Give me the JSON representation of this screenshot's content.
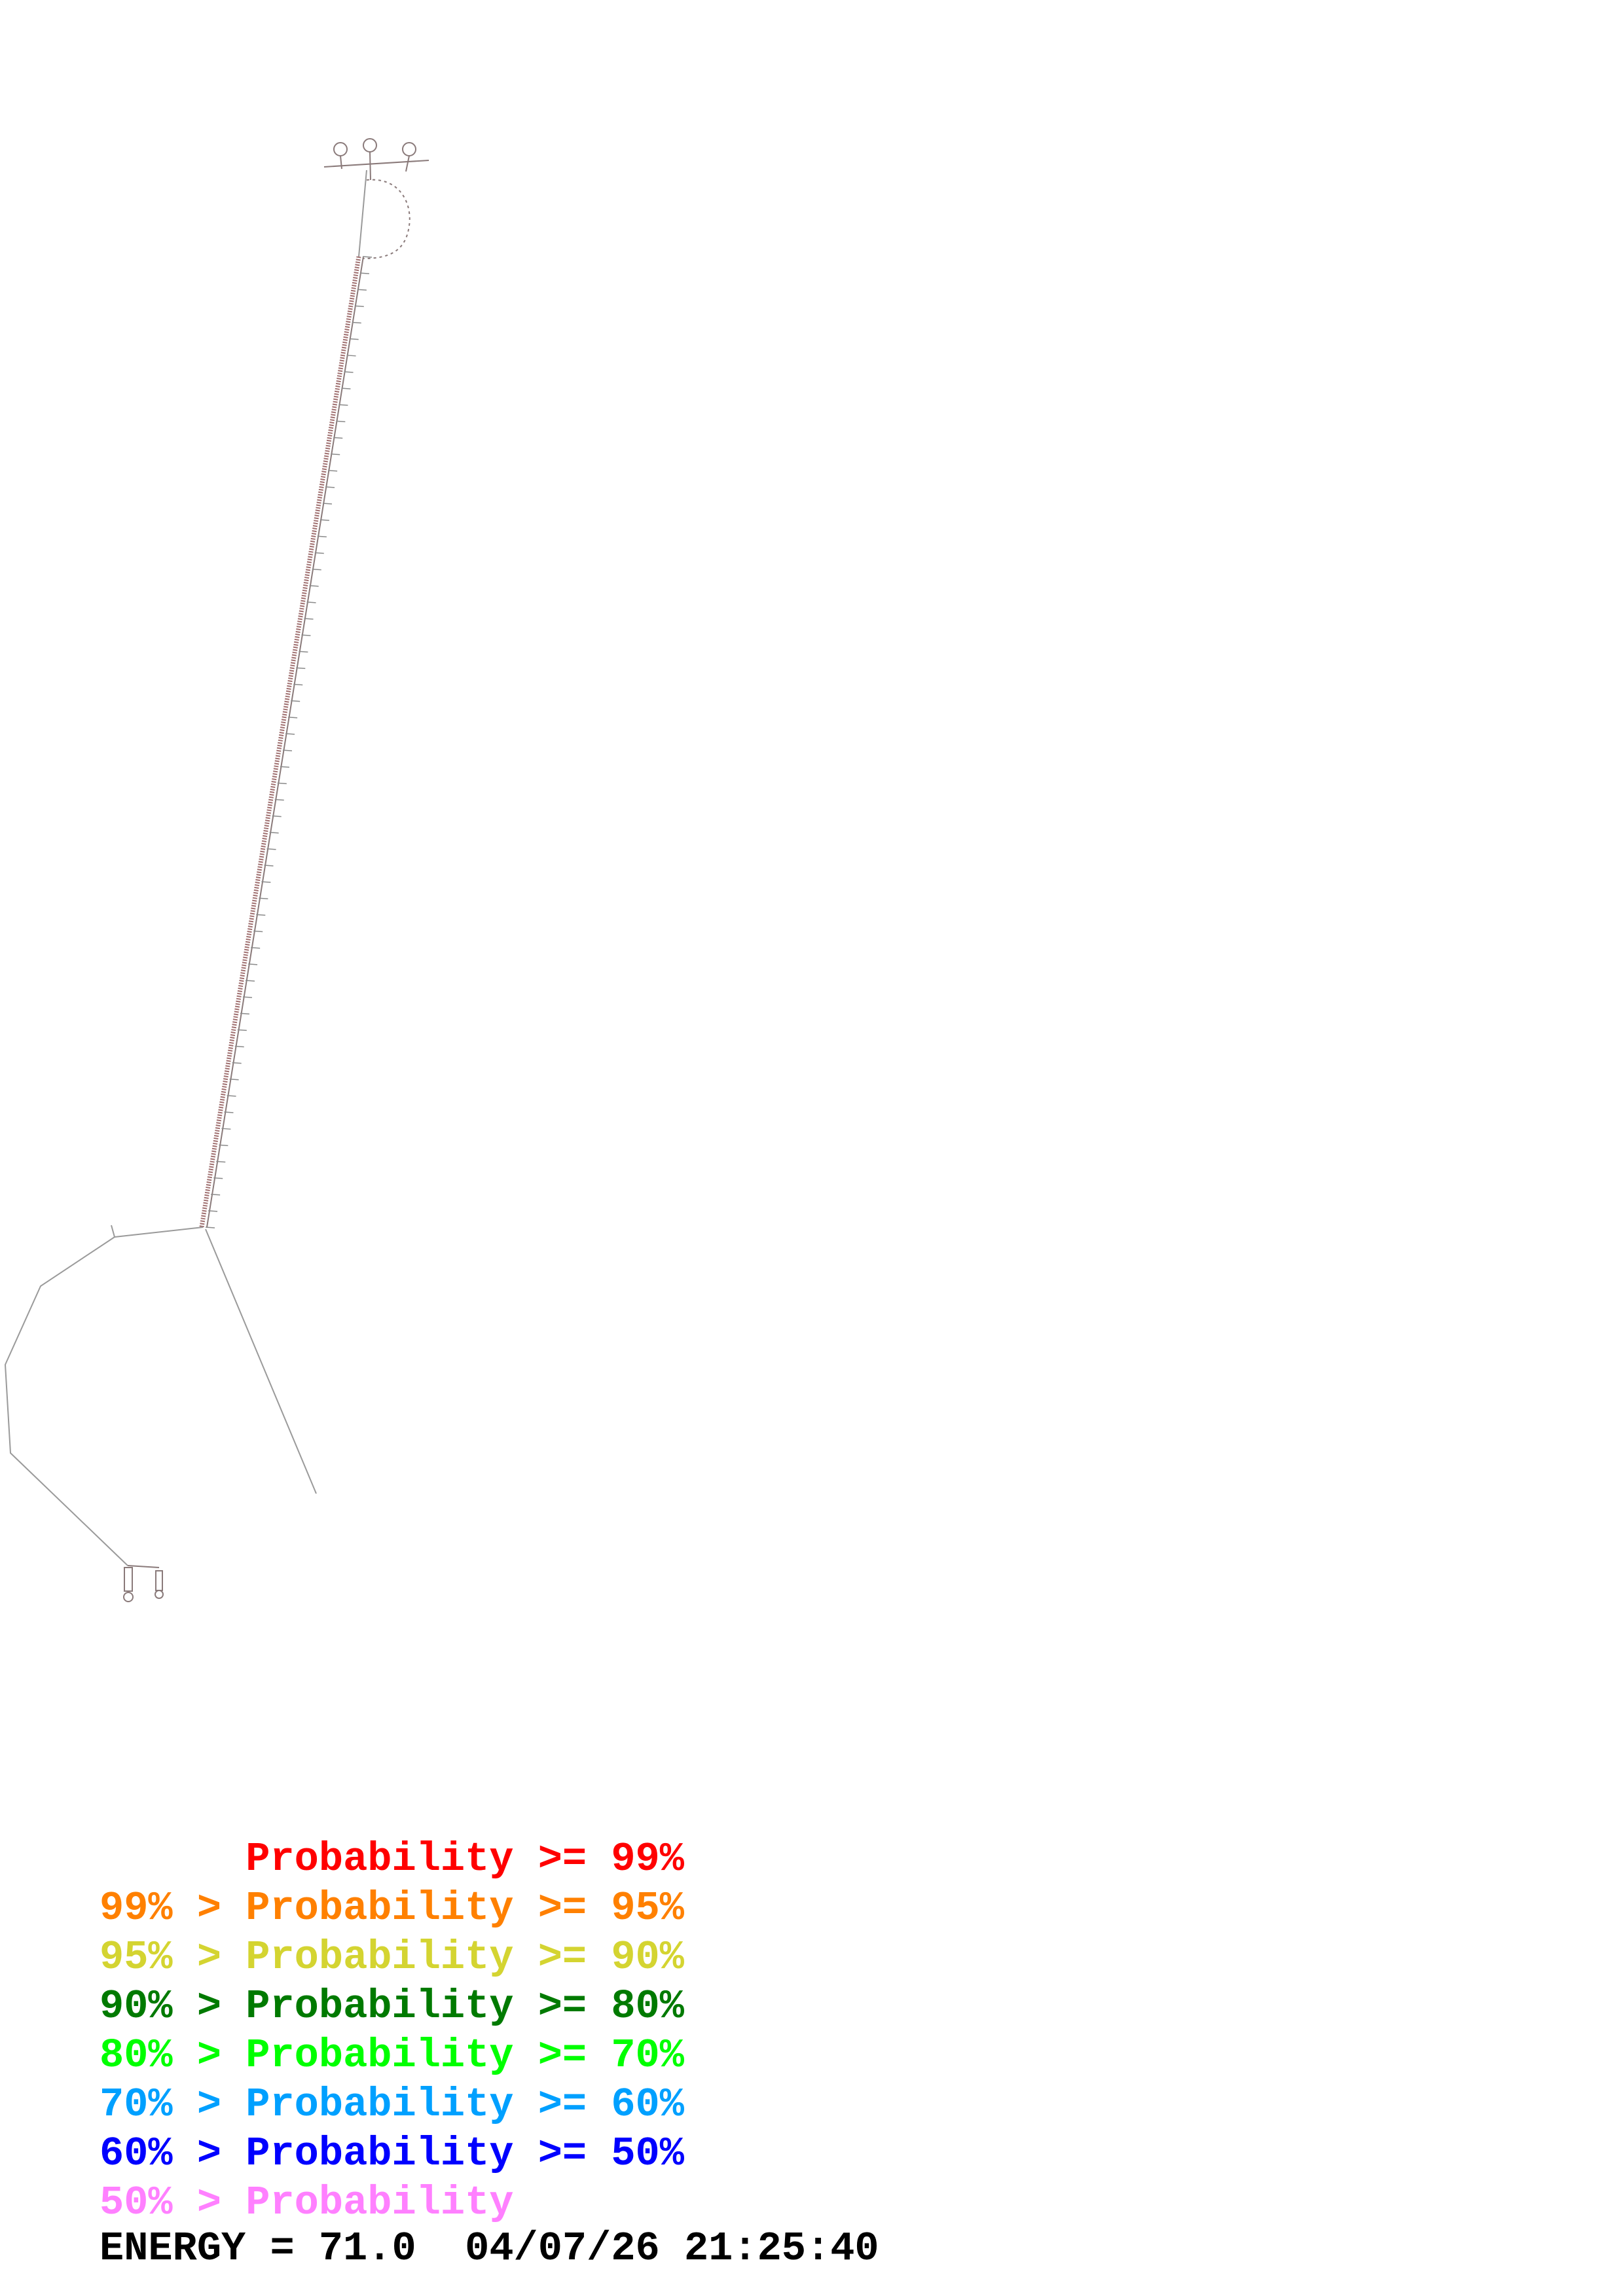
{
  "legend": [
    {
      "prefix": "    ",
      "label": "Probability >= 99%",
      "color": "#ff0000"
    },
    {
      "prefix": "99% > ",
      "label": "Probability >= 95%",
      "color": "#ff8000"
    },
    {
      "prefix": "95% > ",
      "label": "Probability >= 90%",
      "color": "#d4d431"
    },
    {
      "prefix": "90% > ",
      "label": "Probability >= 80%",
      "color": "#007a00"
    },
    {
      "prefix": "80% > ",
      "label": "Probability >= 70%",
      "color": "#00ff00"
    },
    {
      "prefix": "70% > ",
      "label": "Probability >= 60%",
      "color": "#00a0ff"
    },
    {
      "prefix": "60% > ",
      "label": "Probability >= 50%",
      "color": "#0000ff"
    },
    {
      "prefix": "50% > ",
      "label": "Probability",
      "color": "#ff80ff"
    }
  ],
  "footer": {
    "energy_label": "ENERGY = 71.0",
    "timestamp": "04/07/26 21:25:40"
  },
  "colors": {
    "backbone": "#9a8a8a",
    "pair": "#c07070",
    "text": "#000000"
  }
}
